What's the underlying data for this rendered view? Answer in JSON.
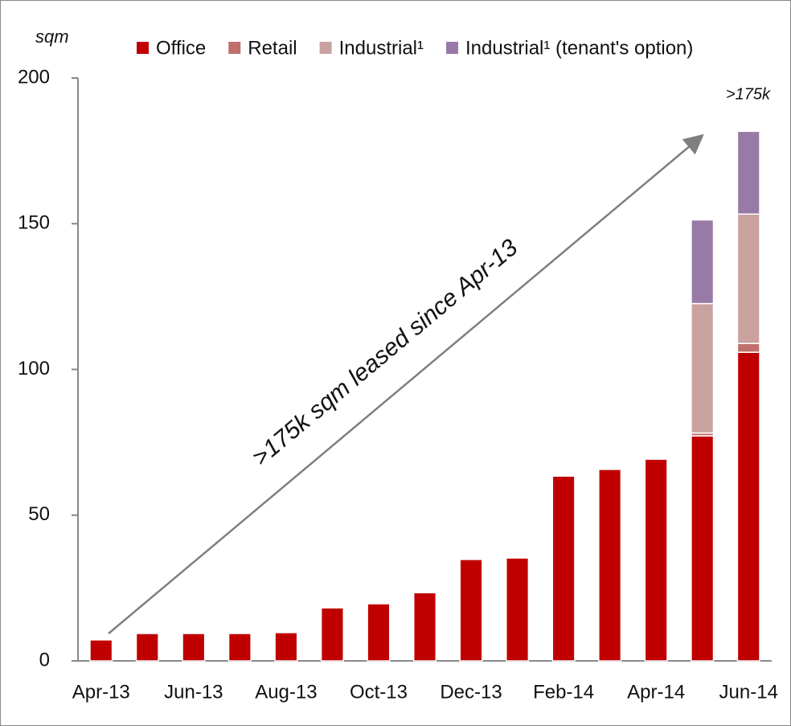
{
  "chart_data": {
    "type": "bar",
    "stacked": true,
    "y_axis_label": "sqm",
    "annotations": [
      ">175k",
      ">175k sqm leased since Apr-13"
    ],
    "categories": [
      "Apr-13",
      null,
      "Jun-13",
      null,
      "Aug-13",
      null,
      "Oct-13",
      null,
      "Dec-13",
      null,
      "Feb-14",
      null,
      "Apr-14",
      null,
      "Jun-14"
    ],
    "series": [
      {
        "name": "Office",
        "color": "#c00000",
        "values": [
          7.2,
          9.4,
          9.4,
          9.4,
          9.7,
          18.2,
          19.6,
          23.4,
          34.8,
          35.3,
          63.4,
          65.7,
          69.2,
          77.2,
          105.9
        ]
      },
      {
        "name": "Retail",
        "color": "#c0706c",
        "values": [
          0,
          0,
          0,
          0,
          0,
          0,
          0,
          0,
          0,
          0,
          0,
          0,
          0,
          1,
          3
        ]
      },
      {
        "name": "Industrial¹",
        "color": "#c9a19f",
        "values": [
          0,
          0,
          0,
          0,
          0,
          0,
          0,
          0,
          0,
          0,
          0,
          0,
          0,
          44.4,
          44.4
        ]
      },
      {
        "name": "Industrial¹ (tenant's option)",
        "color": "#977aa5",
        "values": [
          0,
          0,
          0,
          0,
          0,
          0,
          0,
          0,
          0,
          0,
          0,
          0,
          0,
          28.7,
          28.4
        ]
      }
    ],
    "ylim": [
      0,
      200
    ],
    "yticks": [
      0,
      50,
      100,
      150,
      200
    ],
    "grid": false
  }
}
